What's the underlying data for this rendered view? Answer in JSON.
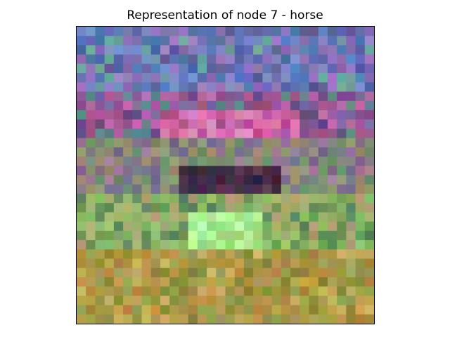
{
  "chart_data": {
    "type": "heatmap",
    "title": "Representation of node 7 - horse",
    "axes_visible": false,
    "grid": false,
    "rows": 32,
    "cols": 32,
    "color_mode": "rgb",
    "regions": [
      {
        "name": "sky-top",
        "row_range": [
          0,
          7
        ],
        "palette": [
          "#6a6fb6",
          "#5a7fc0",
          "#8a6fb0",
          "#4f6ea8",
          "#7d8fc8",
          "#6aa2a0",
          "#5c5e9a",
          "#9b7cc4"
        ]
      },
      {
        "name": "upper-mauve",
        "row_range": [
          7,
          12
        ],
        "palette": [
          "#8a4f8c",
          "#a8609c",
          "#6b4a80",
          "#c06ab0",
          "#7a6aa0",
          "#5f8a8c",
          "#9d4f7f"
        ]
      },
      {
        "name": "pink-center",
        "row_range": [
          9,
          16
        ],
        "col_range": [
          9,
          24
        ],
        "palette": [
          "#d86ab0",
          "#e07aa8",
          "#c04f90",
          "#b85aa0",
          "#e090c0",
          "#a84a80"
        ]
      },
      {
        "name": "band-mixed",
        "row_range": [
          12,
          18
        ],
        "palette": [
          "#7f7a8a",
          "#8a9a78",
          "#a07a9a",
          "#6f8f6a",
          "#9a8f70",
          "#7a6a8a"
        ]
      },
      {
        "name": "dark-body",
        "row_range": [
          15,
          20
        ],
        "col_range": [
          11,
          22
        ],
        "palette": [
          "#3a2238",
          "#4a2a48",
          "#5a3050",
          "#2f2a40",
          "#603a5a",
          "#44304a"
        ]
      },
      {
        "name": "green-mid",
        "row_range": [
          18,
          25
        ],
        "palette": [
          "#7fae60",
          "#98c070",
          "#6a9a58",
          "#a8b070",
          "#8ab868",
          "#5f8a60",
          "#b0a070"
        ]
      },
      {
        "name": "bright-green",
        "row_range": [
          20,
          26
        ],
        "col_range": [
          12,
          20
        ],
        "palette": [
          "#a8f090",
          "#b8ff9a",
          "#90e080",
          "#c8ffb0",
          "#98d878",
          "#b0e890"
        ]
      },
      {
        "name": "ground",
        "row_range": [
          24,
          32
        ],
        "palette": [
          "#a89040",
          "#b8a050",
          "#8a8a38",
          "#c0a048",
          "#9a9a48",
          "#b08840",
          "#a0a058",
          "#c8b060"
        ]
      }
    ],
    "seed": 7
  }
}
